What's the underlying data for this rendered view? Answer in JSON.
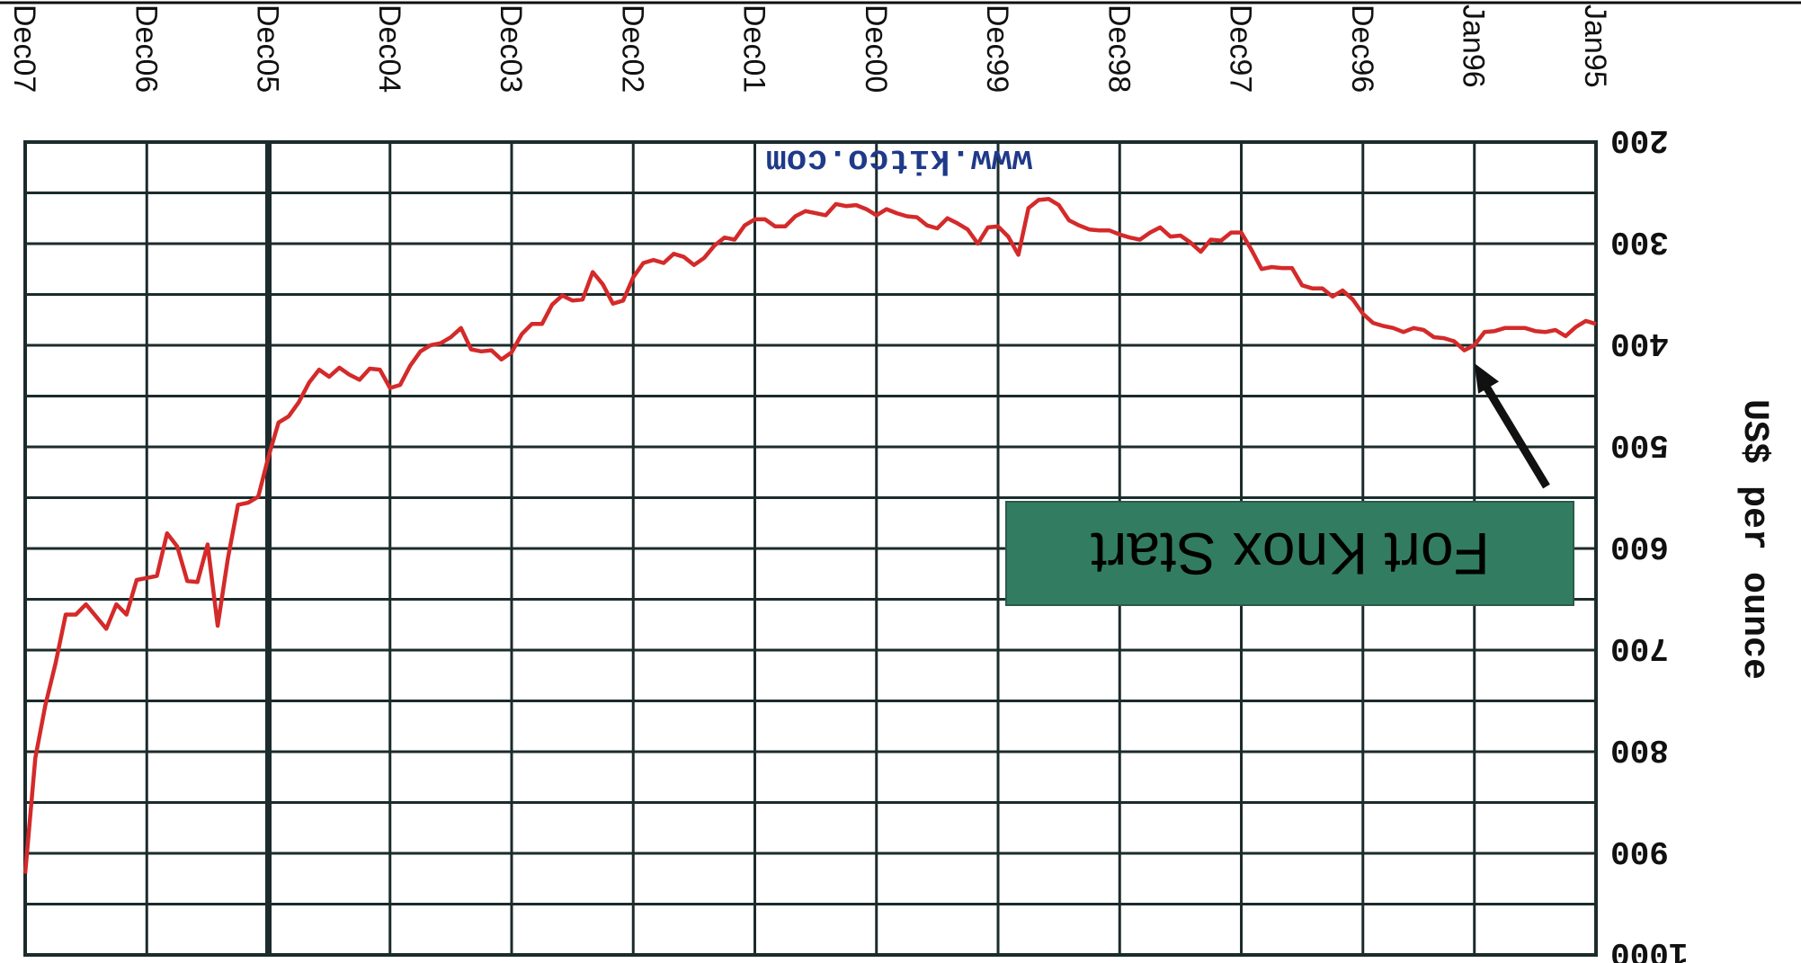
{
  "chart_data": {
    "type": "line",
    "title": "www.kitco.com",
    "annotation": "Fort Knox Start",
    "annotation_at": "Jan96",
    "y_label": "US$ per ounce",
    "x": [
      "Jan95",
      "Feb95",
      "Mar95",
      "Apr95",
      "May95",
      "Jun95",
      "Jul95",
      "Aug95",
      "Sep95",
      "Oct95",
      "Nov95",
      "Dec95",
      "Jan96",
      "Feb96",
      "Mar96",
      "Apr96",
      "May96",
      "Jun96",
      "Jul96",
      "Aug96",
      "Sep96",
      "Oct96",
      "Nov96",
      "Dec96",
      "Jan97",
      "Feb97",
      "Mar97",
      "Apr97",
      "May97",
      "Jun97",
      "Jul97",
      "Aug97",
      "Sep97",
      "Oct97",
      "Nov97",
      "Dec97",
      "Jan98",
      "Feb98",
      "Mar98",
      "Apr98",
      "May98",
      "Jun98",
      "Jul98",
      "Aug98",
      "Sep98",
      "Oct98",
      "Nov98",
      "Dec98",
      "Jan99",
      "Feb99",
      "Mar99",
      "Apr99",
      "May99",
      "Jun99",
      "Jul99",
      "Aug99",
      "Sep99",
      "Oct99",
      "Nov99",
      "Dec99",
      "Jan00",
      "Feb00",
      "Mar00",
      "Apr00",
      "May00",
      "Jun00",
      "Jul00",
      "Aug00",
      "Sep00",
      "Oct00",
      "Nov00",
      "Dec00",
      "Jan01",
      "Feb01",
      "Mar01",
      "Apr01",
      "May01",
      "Jun01",
      "Jul01",
      "Aug01",
      "Sep01",
      "Oct01",
      "Nov01",
      "Dec01",
      "Jan02",
      "Feb02",
      "Mar02",
      "Apr02",
      "May02",
      "Jun02",
      "Jul02",
      "Aug02",
      "Sep02",
      "Oct02",
      "Nov02",
      "Dec02",
      "Jan03",
      "Feb03",
      "Mar03",
      "Apr03",
      "May03",
      "Jun03",
      "Jul03",
      "Aug03",
      "Sep03",
      "Oct03",
      "Nov03",
      "Dec03",
      "Jan04",
      "Feb04",
      "Mar04",
      "Apr04",
      "May04",
      "Jun04",
      "Jul04",
      "Aug04",
      "Sep04",
      "Oct04",
      "Nov04",
      "Dec04",
      "Jan05",
      "Feb05",
      "Mar05",
      "Apr05",
      "May05",
      "Jun05",
      "Jul05",
      "Aug05",
      "Sep05",
      "Oct05",
      "Nov05",
      "Dec05",
      "Jan06",
      "Feb06",
      "Mar06",
      "Apr06",
      "May06",
      "Jun06",
      "Jul06",
      "Aug06",
      "Sep06",
      "Oct06",
      "Nov06",
      "Dec06",
      "Jan07",
      "Feb07",
      "Mar07",
      "Apr07",
      "May07",
      "Jun07",
      "Jul07",
      "Aug07",
      "Sep07",
      "Oct07",
      "Nov07",
      "Dec07"
    ],
    "values": [
      379,
      376,
      382,
      391,
      385,
      387,
      386,
      383,
      383,
      383,
      386,
      387,
      400,
      405,
      396,
      393,
      392,
      385,
      383,
      387,
      383,
      381,
      378,
      369,
      355,
      346,
      352,
      344,
      344,
      341,
      324,
      324,
      323,
      325,
      306,
      289,
      289,
      297,
      296,
      308,
      299,
      292,
      293,
      284,
      289,
      296,
      294,
      291,
      287,
      287,
      286,
      282,
      277,
      262,
      256,
      257,
      265,
      311,
      293,
      283,
      284,
      300,
      286,
      280,
      275,
      285,
      282,
      274,
      273,
      270,
      266,
      272,
      266,
      262,
      263,
      261,
      272,
      270,
      268,
      273,
      283,
      283,
      276,
      276,
      282,
      296,
      294,
      302,
      314,
      321,
      313,
      310,
      319,
      316,
      319,
      333,
      356,
      359,
      340,
      328,
      355,
      356,
      351,
      360,
      379,
      379,
      389,
      407,
      414,
      405,
      406,
      404,
      383,
      392,
      398,
      400,
      406,
      420,
      439,
      442,
      424,
      423,
      434,
      429,
      422,
      431,
      424,
      437,
      456,
      470,
      476,
      510,
      549,
      555,
      557,
      610,
      676,
      596,
      633,
      632,
      598,
      585,
      627,
      629,
      631,
      665,
      655,
      679,
      667,
      655,
      665,
      665,
      713,
      754,
      806,
      920
    ],
    "color": "#d42a2a",
    "xticks": [
      "Jan95",
      "Jan96",
      "Dec96",
      "Dec97",
      "Dec98",
      "Dec99",
      "Dec00",
      "Dec01",
      "Dec02",
      "Dec03",
      "Dec04",
      "Dec05",
      "Dec06",
      "Dec07"
    ],
    "highlight_xtick": "Dec05",
    "ylim": [
      200,
      1000
    ],
    "yticks": [
      200,
      300,
      400,
      500,
      600,
      700,
      800,
      900,
      1000
    ],
    "minor_yticks": [
      250,
      350,
      450,
      550,
      650,
      750,
      850,
      950
    ],
    "grid": true,
    "rotation": 180
  }
}
